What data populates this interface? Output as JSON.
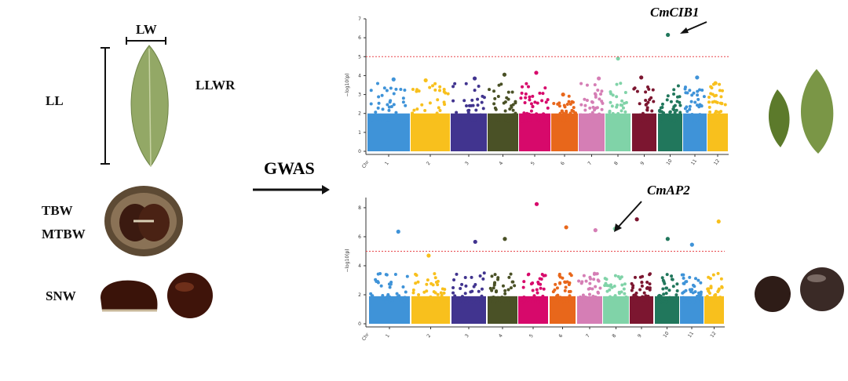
{
  "labels": {
    "lw": "LW",
    "ll": "LL",
    "llwr": "LLWR",
    "tbw": "TBW",
    "mtbw": "MTBW",
    "snw": "SNW",
    "gwas": "GWAS"
  },
  "chart_data": [
    {
      "type": "scatter",
      "subtype": "manhattan",
      "ylabel": "−log10(p)",
      "ylim": [
        0,
        7
      ],
      "yticks": [
        0,
        1,
        2,
        3,
        4,
        5,
        6,
        7
      ],
      "threshold": 5,
      "threshold_color": "#e8474b",
      "x_first_label": "Chr",
      "categories": [
        "1",
        "2",
        "3",
        "4",
        "5",
        "6",
        "7",
        "8",
        "9",
        "10",
        "11",
        "12"
      ],
      "max_values": [
        3.8,
        3.75,
        3.85,
        4.05,
        4.15,
        3.0,
        3.85,
        4.9,
        3.9,
        6.15,
        3.9,
        3.6
      ],
      "annotation": {
        "label": "CmCIB1",
        "chromosome": "10",
        "value": 6.15
      }
    },
    {
      "type": "scatter",
      "subtype": "manhattan",
      "ylabel": "−log10(p)",
      "ylim": [
        0,
        8.7
      ],
      "yticks": [
        0,
        2,
        4,
        6,
        8
      ],
      "threshold": 5,
      "threshold_color": "#e8474b",
      "x_first_label": "Chr",
      "categories": [
        "1",
        "2",
        "3",
        "4",
        "5",
        "6",
        "7",
        "8",
        "9",
        "10",
        "11",
        "12"
      ],
      "max_values": [
        6.35,
        4.7,
        5.65,
        5.85,
        8.25,
        6.65,
        6.45,
        6.55,
        7.2,
        5.85,
        5.45,
        7.05
      ],
      "annotation": {
        "label": "CmAP2",
        "chromosome": "8",
        "value": 5.7
      }
    }
  ],
  "colors": [
    "#3f93d8",
    "#f8c01d",
    "#41348f",
    "#4a5126",
    "#d7096b",
    "#e8671b",
    "#d57eb5",
    "#80d3a8",
    "#7c1630",
    "#21775c",
    "#3f93d8",
    "#f8c01d"
  ]
}
